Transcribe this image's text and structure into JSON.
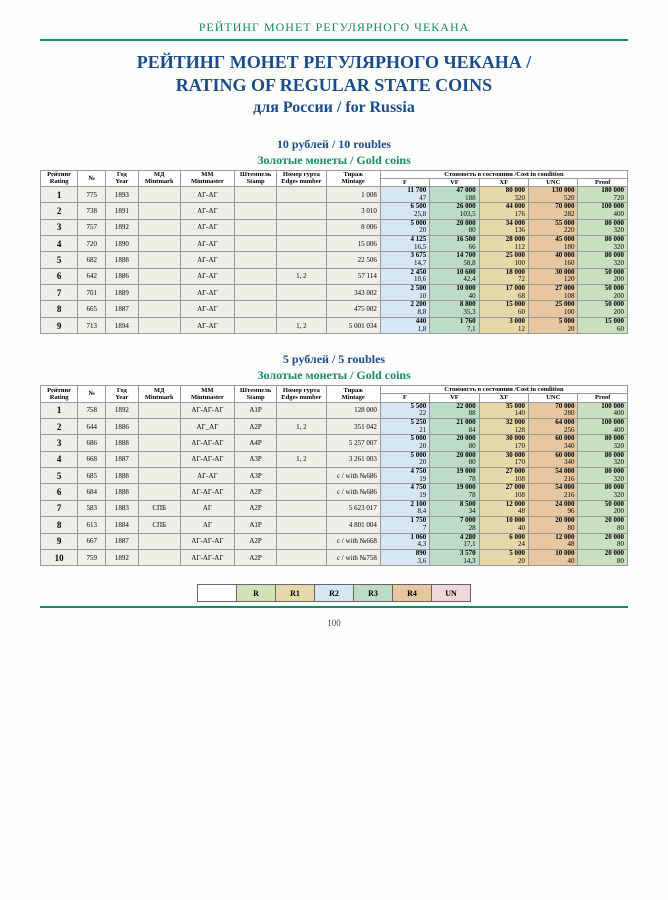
{
  "header": "РЕЙТИНГ МОНЕТ РЕГУЛЯРНОГО ЧЕКАНА",
  "title_line1": "РЕЙТИНГ МОНЕТ РЕГУЛЯРНОГО ЧЕКАНА /",
  "title_line2": "RATING OF REGULAR STATE COINS",
  "title_line3": "для России / for Russia",
  "cols": {
    "rating": "Рейтинг\nRating",
    "num": "№",
    "year": "Год\nYear",
    "mint": "МД\nMintmark",
    "master": "ММ\nMintmaster",
    "stamp": "Штемпель\nStamp",
    "edge": "Номер гурта\nEdges number",
    "mintage": "Тираж\nMintage",
    "cond": "Стоимость в состоянии /Cost in condition",
    "f": "F",
    "vf": "VF",
    "xf": "XF",
    "unc": "UNC",
    "proof": "Proof"
  },
  "sec1": {
    "title": "10 рублей / 10 roubles",
    "sub": "Золотые монеты / Gold coins"
  },
  "sec2": {
    "title": "5 рублей / 5 roubles",
    "sub": "Золотые монеты / Gold coins"
  },
  "t1": [
    {
      "r": "1",
      "n": "775",
      "y": "1893",
      "mi": "",
      "mm": "АГ-АГ",
      "st": "",
      "ed": "",
      "mt": "1 008",
      "f": [
        "11 700",
        "47"
      ],
      "vf": [
        "47 000",
        "188"
      ],
      "xf": [
        "80 000",
        "320"
      ],
      "unc": [
        "130 000",
        "520"
      ],
      "pf": [
        "180 000",
        "720"
      ]
    },
    {
      "r": "2",
      "n": "738",
      "y": "1891",
      "mi": "",
      "mm": "АГ-АГ",
      "st": "",
      "ed": "",
      "mt": "3 010",
      "f": [
        "6 500",
        "25,8"
      ],
      "vf": [
        "26 000",
        "103,5"
      ],
      "xf": [
        "44 000",
        "176"
      ],
      "unc": [
        "70 000",
        "282"
      ],
      "pf": [
        "100 000",
        "400"
      ]
    },
    {
      "r": "3",
      "n": "757",
      "y": "1892",
      "mi": "",
      "mm": "АГ-АГ",
      "st": "",
      "ed": "",
      "mt": "8 006",
      "f": [
        "5 000",
        "20"
      ],
      "vf": [
        "20 000",
        "80"
      ],
      "xf": [
        "34 000",
        "136"
      ],
      "unc": [
        "55 000",
        "220"
      ],
      "pf": [
        "80 000",
        "320"
      ]
    },
    {
      "r": "4",
      "n": "720",
      "y": "1890",
      "mi": "",
      "mm": "АГ-АГ",
      "st": "",
      "ed": "",
      "mt": "15 006",
      "f": [
        "4 125",
        "16,5"
      ],
      "vf": [
        "16 500",
        "66"
      ],
      "xf": [
        "28 000",
        "112"
      ],
      "unc": [
        "45 000",
        "180"
      ],
      "pf": [
        "80 000",
        "320"
      ]
    },
    {
      "r": "5",
      "n": "682",
      "y": "1888",
      "mi": "",
      "mm": "АГ-АГ",
      "st": "",
      "ed": "",
      "mt": "22 506",
      "f": [
        "3 675",
        "14,7"
      ],
      "vf": [
        "14 700",
        "58,8"
      ],
      "xf": [
        "25 000",
        "100"
      ],
      "unc": [
        "40 000",
        "160"
      ],
      "pf": [
        "80 000",
        "320"
      ]
    },
    {
      "r": "6",
      "n": "642",
      "y": "1886",
      "mi": "",
      "mm": "АГ-АГ",
      "st": "",
      "ed": "1, 2",
      "mt": "57 114",
      "f": [
        "2 450",
        "10,6"
      ],
      "vf": [
        "10 600",
        "42,4"
      ],
      "xf": [
        "18 000",
        "72"
      ],
      "unc": [
        "30 000",
        "120"
      ],
      "pf": [
        "50 000",
        "200"
      ]
    },
    {
      "r": "7",
      "n": "701",
      "y": "1889",
      "mi": "",
      "mm": "АГ-АГ",
      "st": "",
      "ed": "",
      "mt": "343 002",
      "f": [
        "2 500",
        "10"
      ],
      "vf": [
        "10 000",
        "40"
      ],
      "xf": [
        "17 000",
        "68"
      ],
      "unc": [
        "27 000",
        "108"
      ],
      "pf": [
        "50 000",
        "200"
      ]
    },
    {
      "r": "8",
      "n": "665",
      "y": "1887",
      "mi": "",
      "mm": "АГ-АГ",
      "st": "",
      "ed": "",
      "mt": "475 002",
      "f": [
        "2 200",
        "8,8"
      ],
      "vf": [
        "8 800",
        "35,3"
      ],
      "xf": [
        "15 000",
        "60"
      ],
      "unc": [
        "25 000",
        "100"
      ],
      "pf": [
        "50 000",
        "200"
      ]
    },
    {
      "r": "9",
      "n": "713",
      "y": "1894",
      "mi": "",
      "mm": "АГ-АГ",
      "st": "",
      "ed": "1, 2",
      "mt": "5 001 034",
      "f": [
        "440",
        "1,8"
      ],
      "vf": [
        "1 760",
        "7,1"
      ],
      "xf": [
        "3 000",
        "12"
      ],
      "unc": [
        "5 000",
        "20"
      ],
      "pf": [
        "15 000",
        "60"
      ]
    }
  ],
  "t2": [
    {
      "r": "1",
      "n": "758",
      "y": "1892",
      "mi": "",
      "mm": "АГ-АГ-АГ",
      "st": "А1Р",
      "ed": "",
      "mt": "128 000",
      "f": [
        "5 500",
        "22"
      ],
      "vf": [
        "22 000",
        "88"
      ],
      "xf": [
        "35 000",
        "140"
      ],
      "unc": [
        "70 000",
        "280"
      ],
      "pf": [
        "100 000",
        "400"
      ]
    },
    {
      "r": "2",
      "n": "644",
      "y": "1886",
      "mi": "",
      "mm": "АГ_АГ",
      "st": "А2Р",
      "ed": "1, 2",
      "mt": "351 042",
      "f": [
        "5 250",
        "21"
      ],
      "vf": [
        "21 000",
        "84"
      ],
      "xf": [
        "32 000",
        "128"
      ],
      "unc": [
        "64 000",
        "256"
      ],
      "pf": [
        "100 000",
        "400"
      ]
    },
    {
      "r": "3",
      "n": "686",
      "y": "1888",
      "mi": "",
      "mm": "АГ-АГ-АГ",
      "st": "А4Р",
      "ed": "",
      "mt": "5 257 007",
      "f": [
        "5 000",
        "20"
      ],
      "vf": [
        "20 000",
        "80"
      ],
      "xf": [
        "30 000",
        "170"
      ],
      "unc": [
        "60 000",
        "340"
      ],
      "pf": [
        "80 000",
        "320"
      ]
    },
    {
      "r": "4",
      "n": "668",
      "y": "1887",
      "mi": "",
      "mm": "АГ-АГ-АГ",
      "st": "А3Р",
      "ed": "1, 2",
      "mt": "3 261 003",
      "f": [
        "5 000",
        "20"
      ],
      "vf": [
        "20 000",
        "80"
      ],
      "xf": [
        "30 000",
        "170"
      ],
      "unc": [
        "60 000",
        "340"
      ],
      "pf": [
        "80 000",
        "320"
      ]
    },
    {
      "r": "5",
      "n": "685",
      "y": "1888",
      "mi": "",
      "mm": "АГ-АГ",
      "st": "А3Р",
      "ed": "",
      "mt": "с / with №686",
      "f": [
        "4 750",
        "19"
      ],
      "vf": [
        "19 000",
        "78"
      ],
      "xf": [
        "27 000",
        "108"
      ],
      "unc": [
        "54 000",
        "216"
      ],
      "pf": [
        "80 000",
        "320"
      ]
    },
    {
      "r": "6",
      "n": "684",
      "y": "1888",
      "mi": "",
      "mm": "АГ-АГ-АГ",
      "st": "А2Р",
      "ed": "",
      "mt": "с / with №686",
      "f": [
        "4 750",
        "19"
      ],
      "vf": [
        "19 000",
        "78"
      ],
      "xf": [
        "27 000",
        "108"
      ],
      "unc": [
        "54 000",
        "216"
      ],
      "pf": [
        "80 000",
        "320"
      ]
    },
    {
      "r": "7",
      "n": "583",
      "y": "1883",
      "mi": "СПБ",
      "mm": "АГ",
      "st": "А2Р",
      "ed": "",
      "mt": "5 623 017",
      "f": [
        "2 100",
        "8,4"
      ],
      "vf": [
        "8 500",
        "34"
      ],
      "xf": [
        "12 000",
        "48"
      ],
      "unc": [
        "24 000",
        "96"
      ],
      "pf": [
        "50 000",
        "200"
      ]
    },
    {
      "r": "8",
      "n": "613",
      "y": "1884",
      "mi": "СПБ",
      "mm": "АГ",
      "st": "А1Р",
      "ed": "",
      "mt": "4 801 004",
      "f": [
        "1 750",
        "7"
      ],
      "vf": [
        "7 000",
        "28"
      ],
      "xf": [
        "10 000",
        "40"
      ],
      "unc": [
        "20 000",
        "80"
      ],
      "pf": [
        "20 000",
        "80"
      ]
    },
    {
      "r": "9",
      "n": "667",
      "y": "1887",
      "mi": "",
      "mm": "АГ-АГ-АГ",
      "st": "А2Р",
      "ed": "",
      "mt": "с / with №668",
      "f": [
        "1 060",
        "4,3"
      ],
      "vf": [
        "4 280",
        "17,1"
      ],
      "xf": [
        "6 000",
        "24"
      ],
      "unc": [
        "12 000",
        "48"
      ],
      "pf": [
        "20 000",
        "80"
      ]
    },
    {
      "r": "10",
      "n": "759",
      "y": "1892",
      "mi": "",
      "mm": "АГ-АГ-АГ",
      "st": "А2Р",
      "ed": "",
      "mt": "с / with №758",
      "f": [
        "890",
        "3,6"
      ],
      "vf": [
        "3 570",
        "14,3"
      ],
      "xf": [
        "5 000",
        "20"
      ],
      "unc": [
        "10 000",
        "40"
      ],
      "pf": [
        "20 000",
        "80"
      ]
    }
  ],
  "legend": [
    "",
    "R",
    "R1",
    "R2",
    "R3",
    "R4",
    "UN"
  ],
  "pagenum": "100"
}
